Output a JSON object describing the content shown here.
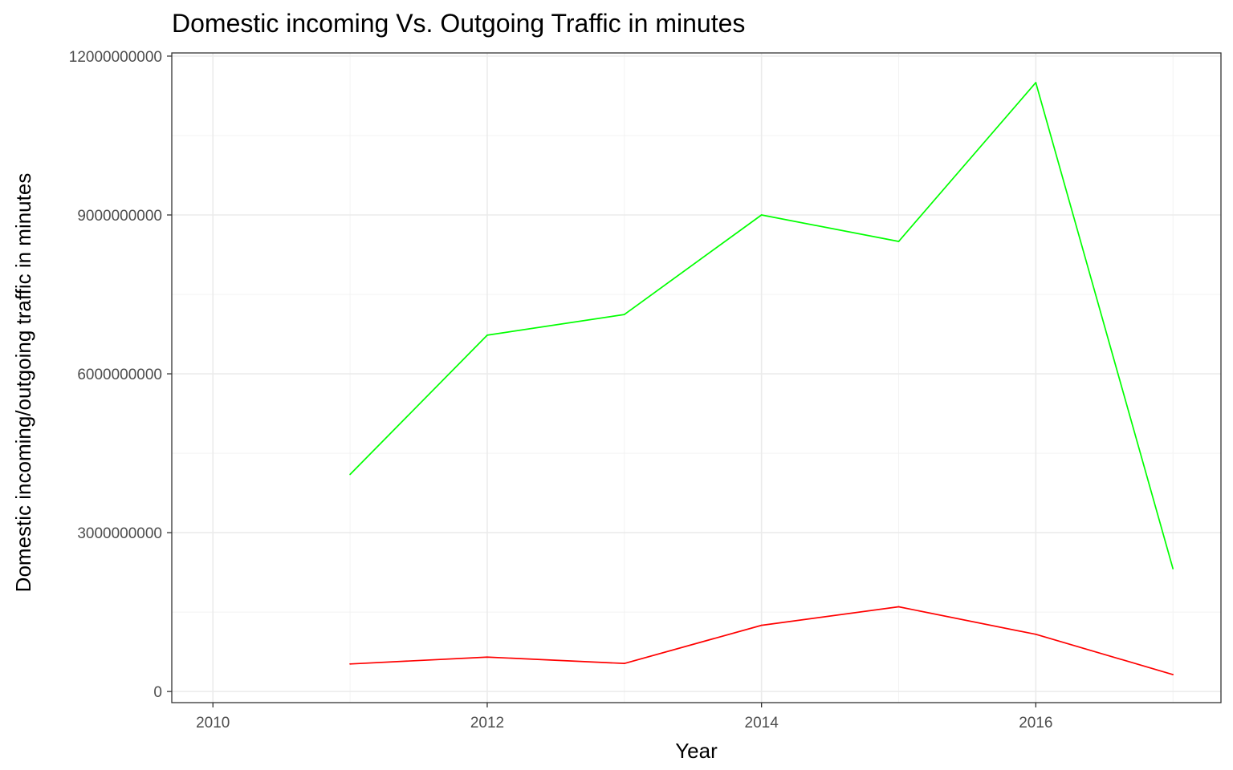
{
  "chart_data": {
    "type": "line",
    "title": "Domestic incoming Vs. Outgoing Traffic in minutes",
    "xlabel": "Year",
    "ylabel": "Domestic incoming/outgoing traffic in minutes",
    "xlim": [
      2009.7,
      2017.35
    ],
    "ylim": [
      -210000000,
      12060000000
    ],
    "x_ticks": [
      2010,
      2012,
      2014,
      2016
    ],
    "y_ticks": [
      0,
      3000000000,
      6000000000,
      9000000000,
      12000000000
    ],
    "y_tick_labels": [
      "0",
      "3000000000",
      "6000000000",
      "9000000000",
      "12000000000"
    ],
    "grid": true,
    "legend": "none",
    "series": [
      {
        "color": "#00ff00",
        "x": [
          2011,
          2012,
          2013,
          2014,
          2015,
          2016,
          2017
        ],
        "values": [
          4100000000,
          6730000000,
          7120000000,
          9000000000,
          8500000000,
          11500000000,
          2320000000
        ]
      },
      {
        "color": "#ff0000",
        "x": [
          2011,
          2012,
          2013,
          2014,
          2015,
          2016,
          2017
        ],
        "values": [
          520000000,
          650000000,
          530000000,
          1250000000,
          1600000000,
          1080000000,
          320000000
        ]
      }
    ]
  }
}
